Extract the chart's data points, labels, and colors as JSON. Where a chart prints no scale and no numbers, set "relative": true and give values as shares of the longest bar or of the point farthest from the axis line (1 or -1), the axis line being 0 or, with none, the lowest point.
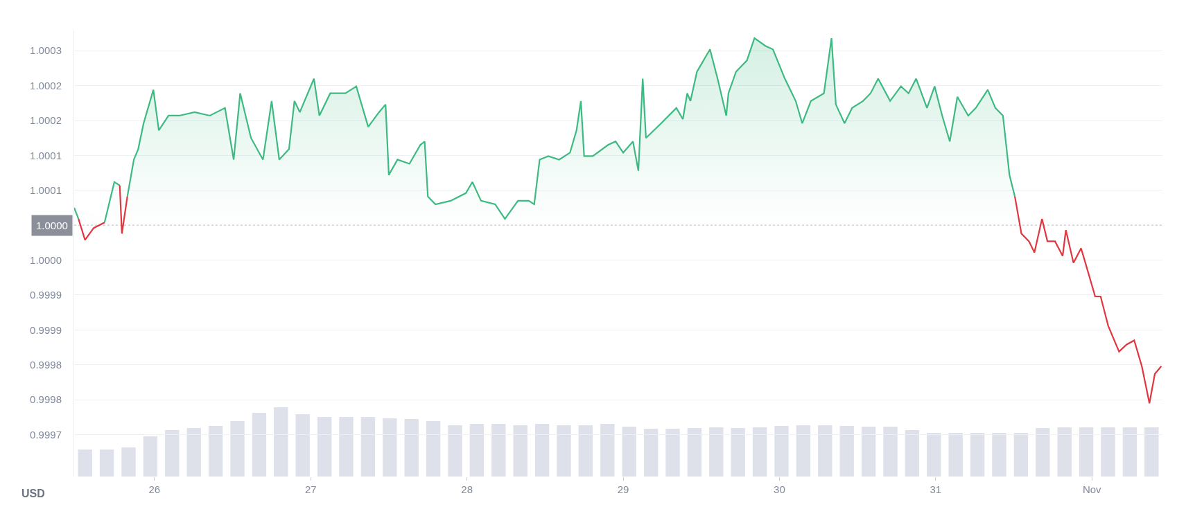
{
  "chart_data": [
    {
      "type": "area",
      "ylabel": "USD",
      "grid": "y",
      "x": [
        "--10-25T11:40",
        "--10-25T12:20",
        "--10-25T13:20",
        "--10-25T14:40",
        "--10-25T16:20",
        "--10-25T17:50",
        "--10-25T18:40",
        "--10-25T19:00",
        "--10-25T19:50",
        "--10-25T20:50",
        "--10-25T21:30",
        "--10-25T22:20",
        "--10-25T23:50",
        "--10-26T00:40",
        "--10-26T02:10",
        "--10-26T03:50",
        "--10-26T06:10",
        "--10-26T08:30",
        "--10-26T10:50",
        "--10-26T12:10",
        "--10-26T13:10",
        "--10-26T14:50",
        "--10-26T16:40",
        "--10-26T18:00",
        "--10-26T19:10",
        "--10-26T20:40",
        "--10-26T21:30",
        "--10-26T22:20",
        "--10-27T00:30",
        "--10-27T01:20",
        "--10-27T03:00",
        "--10-27T05:20",
        "--10-27T07:00",
        "--10-27T08:50",
        "--10-27T10:30",
        "--10-27T11:30",
        "--10-27T12:00",
        "--10-27T13:20",
        "--10-27T15:10",
        "--10-27T16:50",
        "--10-27T17:30",
        "--10-27T18:00",
        "--10-27T19:10",
        "--10-27T21:30",
        "--10-27T23:50",
        "--10-28T00:50",
        "--10-28T02:10",
        "--10-28T04:20",
        "--10-28T05:50",
        "--10-28T07:50",
        "--10-28T09:30",
        "--10-28T10:20",
        "--10-28T11:10",
        "--10-28T12:30",
        "--10-28T14:10",
        "--10-28T15:50",
        "--10-28T16:50",
        "--10-28T17:30",
        "--10-28T18:00",
        "--10-28T19:20",
        "--10-28T21:40",
        "--10-28T22:50",
        "--10-29T00:00",
        "--10-29T01:30",
        "--10-29T02:20",
        "--10-29T03:00",
        "--10-29T03:30",
        "--10-29T05:50",
        "--10-29T08:10",
        "--10-29T09:10",
        "--10-29T09:50",
        "--10-29T10:20",
        "--10-29T11:20",
        "--10-29T13:20",
        "--10-29T14:30",
        "--10-29T15:50",
        "--10-29T16:10",
        "--10-29T17:20",
        "--10-29T19:00",
        "--10-29T20:10",
        "--10-29T21:50",
        "--10-29T23:00",
        "--10-30T00:50",
        "--10-30T02:30",
        "--10-30T03:30",
        "--10-30T04:50",
        "--10-30T06:50",
        "--10-30T08:00",
        "--10-30T08:40",
        "--10-30T10:00",
        "--10-30T11:10",
        "--10-30T12:50",
        "--10-30T14:00",
        "--10-30T15:10",
        "--10-30T17:00",
        "--10-30T18:40",
        "--10-30T19:50",
        "--10-30T21:00",
        "--10-30T22:40",
        "--10-30T23:50",
        "--10-31T01:00",
        "--10-31T02:10",
        "--10-31T03:20",
        "--10-31T05:00",
        "--10-31T06:10",
        "--10-31T08:00",
        "--10-31T09:10",
        "--10-31T10:20",
        "--10-31T11:20",
        "--10-31T12:10",
        "--10-31T13:10",
        "--10-31T14:20",
        "--10-31T15:10",
        "--10-31T16:20",
        "--10-31T17:10",
        "--10-31T18:20",
        "--10-31T19:30",
        "--10-31T20:00",
        "--10-31T21:10",
        "--10-31T22:20",
        "--10-31T23:00",
        "--11-01T00:30",
        "--11-01T01:20",
        "--11-01T02:30",
        "--11-01T04:10",
        "--11-01T05:20",
        "--11-01T06:30",
        "--11-01T07:40",
        "--11-01T08:50",
        "--11-01T09:40",
        "--11-01T10:40"
      ],
      "series": [
        {
          "color": "#3dba82",
          "values": [
            1.000025,
            1.000009,
            null,
            null,
            1.000004,
            1.000062,
            1.000057,
            null,
            1.000041,
            1.000094,
            1.000109,
            1.000146,
            1.000194,
            1.000136,
            1.000157,
            1.000157,
            1.000162,
            1.000157,
            1.000168,
            1.000094,
            1.000189,
            1.000125,
            1.000094,
            1.000178,
            1.000094,
            1.000109,
            1.000178,
            1.000162,
            1.00021,
            1.000157,
            1.000189,
            1.000189,
            1.000199,
            1.000141,
            1.000162,
            1.000173,
            1.000072,
            1.000094,
            1.000088,
            1.000115,
            1.00012,
            1.000041,
            1.00003,
            1.000035,
            1.000046,
            1.000062,
            1.000035,
            1.00003,
            1.000009,
            1.000035,
            1.000035,
            1.00003,
            1.000094,
            1.000099,
            1.000094,
            1.000104,
            1.000136,
            1.000178,
            1.000099,
            1.000099,
            1.000115,
            1.00012,
            1.000104,
            1.00012,
            1.000078,
            1.00021,
            1.000125,
            1.000146,
            1.000168,
            1.000152,
            1.000189,
            1.000178,
            1.00022,
            1.000252,
            1.00021,
            1.000157,
            1.000189,
            1.00022,
            1.000236,
            1.000268,
            1.000257,
            1.000252,
            1.00021,
            1.000178,
            1.000146,
            1.000178,
            1.000189,
            1.000268,
            1.000173,
            1.000146,
            1.000168,
            1.000178,
            1.000189,
            1.00021,
            1.000178,
            1.000199,
            1.000189,
            1.00021,
            1.000168,
            1.000199,
            1.000157,
            1.00012,
            1.000184,
            1.000157,
            1.000168,
            1.000194,
            1.000168,
            1.000157,
            1.000072,
            1.000041,
            null,
            null,
            null,
            null,
            null,
            null,
            null,
            null,
            null,
            null,
            null,
            null,
            null,
            null,
            null,
            null,
            null,
            null,
            null,
            null,
            null
          ]
        },
        {
          "type": "line",
          "color": "#e0363f",
          "values": [
            null,
            1.000009,
            0.999979,
            0.999996,
            1.000004,
            null,
            1.000057,
            0.999988,
            1.000041,
            null,
            null,
            null,
            null,
            null,
            null,
            null,
            null,
            null,
            null,
            null,
            null,
            null,
            null,
            null,
            null,
            null,
            null,
            null,
            null,
            null,
            null,
            null,
            null,
            null,
            null,
            null,
            null,
            null,
            null,
            null,
            null,
            null,
            null,
            null,
            null,
            null,
            null,
            null,
            null,
            null,
            null,
            null,
            null,
            null,
            null,
            null,
            null,
            null,
            null,
            null,
            null,
            null,
            null,
            null,
            null,
            null,
            null,
            null,
            null,
            null,
            null,
            null,
            null,
            null,
            null,
            null,
            null,
            null,
            null,
            null,
            null,
            null,
            null,
            null,
            null,
            null,
            null,
            null,
            null,
            null,
            null,
            null,
            null,
            null,
            null,
            null,
            null,
            null,
            null,
            null,
            null,
            null,
            null,
            null,
            null,
            null,
            null,
            null,
            null,
            1.000041,
            0.999988,
            0.999977,
            0.999961,
            1.000009,
            0.999977,
            0.999977,
            0.999956,
            0.999993,
            0.999946,
            0.999967,
            0.999946,
            0.999898,
            0.999898,
            0.999856,
            0.999819,
            0.999829,
            0.999835,
            0.999798,
            0.999745,
            0.999787,
            0.999798
          ]
        }
      ],
      "xlim": [
        "--10-25T11:40",
        "--11-01T10:50"
      ],
      "xticks": [
        {
          "value": "--10-26",
          "label": "26"
        },
        {
          "value": "--10-27",
          "label": "27"
        },
        {
          "value": "--10-28",
          "label": "28"
        },
        {
          "value": "--10-29",
          "label": "29"
        },
        {
          "value": "--10-30",
          "label": "30"
        },
        {
          "value": "--10-31",
          "label": "31"
        },
        {
          "value": "--11-01",
          "label": "Nov"
        }
      ],
      "ylim": [
        0.99964,
        1.00028
      ],
      "yticks": [
        {
          "value": 0.9997,
          "label": "0.9997"
        },
        {
          "value": 0.99975,
          "label": "0.9998"
        },
        {
          "value": 0.9998,
          "label": "0.9998"
        },
        {
          "value": 0.99985,
          "label": "0.9999"
        },
        {
          "value": 0.9999,
          "label": "0.9999"
        },
        {
          "value": 0.99995,
          "label": "1.0000"
        },
        {
          "value": 1.00005,
          "label": "1.0001"
        },
        {
          "value": 1.0001,
          "label": "1.0001"
        },
        {
          "value": 1.00015,
          "label": "1.0002"
        },
        {
          "value": 1.0002,
          "label": "1.0002"
        },
        {
          "value": 1.00025,
          "label": "1.0003"
        }
      ],
      "ref_lines": [
        {
          "axis": "y",
          "value": 1,
          "label": "1.0000",
          "color": "#c4c8d0",
          "line_style": "dotted"
        }
      ]
    },
    {
      "type": "bar",
      "relative": true,
      "color": "#dfe1ea",
      "categories": [
        null,
        null,
        null,
        null,
        null,
        null,
        null,
        null,
        null,
        null,
        null,
        null,
        null,
        null,
        null,
        null,
        null,
        null,
        null,
        null,
        null,
        null,
        null,
        null,
        null,
        null,
        null,
        null,
        null,
        null,
        null,
        null,
        null,
        null,
        null,
        null,
        null,
        null,
        null,
        null,
        null,
        null,
        null,
        null,
        null,
        null,
        null,
        null,
        null,
        null
      ],
      "values": [
        0.39,
        0.39,
        0.42,
        0.58,
        0.67,
        0.7,
        0.73,
        0.8,
        0.92,
        1,
        0.9,
        0.86,
        0.86,
        0.86,
        0.84,
        0.83,
        0.8,
        0.74,
        0.76,
        0.76,
        0.74,
        0.76,
        0.74,
        0.74,
        0.76,
        0.72,
        0.69,
        0.69,
        0.7,
        0.71,
        0.7,
        0.71,
        0.73,
        0.74,
        0.74,
        0.73,
        0.72,
        0.72,
        0.67,
        0.63,
        0.63,
        0.63,
        0.63,
        0.63,
        0.7,
        0.71,
        0.71,
        0.71,
        0.71,
        0.71
      ]
    }
  ]
}
